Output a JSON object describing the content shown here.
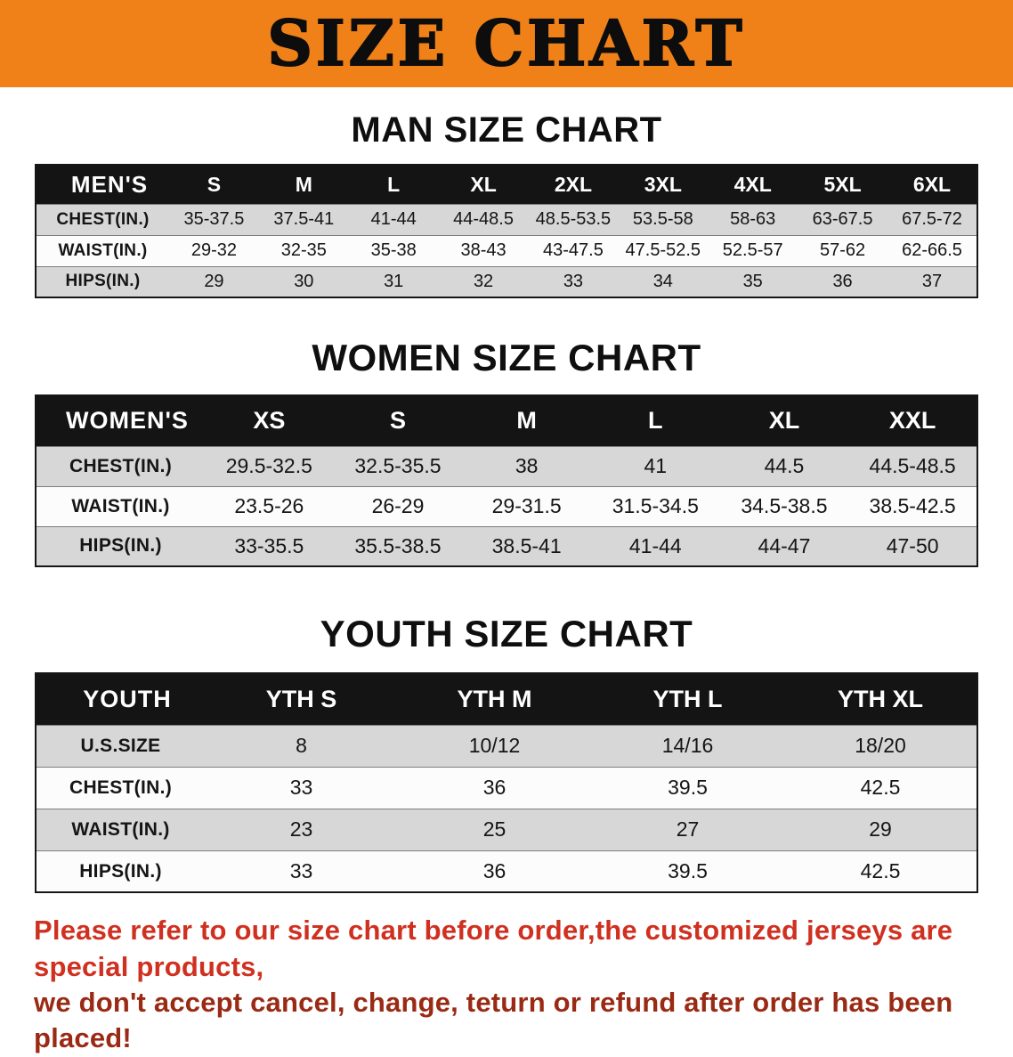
{
  "banner": {
    "title": "SIZE CHART",
    "bg_color": "#f08119"
  },
  "men": {
    "heading": "MAN SIZE CHART",
    "header": [
      "MEN'S",
      "S",
      "M",
      "L",
      "XL",
      "2XL",
      "3XL",
      "4XL",
      "5XL",
      "6XL"
    ],
    "rows": [
      {
        "label": "CHEST(IN.)",
        "values": [
          "35-37.5",
          "37.5-41",
          "41-44",
          "44-48.5",
          "48.5-53.5",
          "53.5-58",
          "58-63",
          "63-67.5",
          "67.5-72"
        ]
      },
      {
        "label": "WAIST(IN.)",
        "values": [
          "29-32",
          "32-35",
          "35-38",
          "38-43",
          "43-47.5",
          "47.5-52.5",
          "52.5-57",
          "57-62",
          "62-66.5"
        ]
      },
      {
        "label": "HIPS(IN.)",
        "values": [
          "29",
          "30",
          "31",
          "32",
          "33",
          "34",
          "35",
          "36",
          "37"
        ]
      }
    ]
  },
  "women": {
    "heading": "WOMEN SIZE CHART",
    "header": [
      "WOMEN'S",
      "XS",
      "S",
      "M",
      "L",
      "XL",
      "XXL"
    ],
    "rows": [
      {
        "label": "CHEST(IN.)",
        "values": [
          "29.5-32.5",
          "32.5-35.5",
          "38",
          "41",
          "44.5",
          "44.5-48.5"
        ]
      },
      {
        "label": "WAIST(IN.)",
        "values": [
          "23.5-26",
          "26-29",
          "29-31.5",
          "31.5-34.5",
          "34.5-38.5",
          "38.5-42.5"
        ]
      },
      {
        "label": "HIPS(IN.)",
        "values": [
          "33-35.5",
          "35.5-38.5",
          "38.5-41",
          "41-44",
          "44-47",
          "47-50"
        ]
      }
    ]
  },
  "youth": {
    "heading": "YOUTH SIZE CHART",
    "header": [
      "YOUTH",
      "YTH S",
      "YTH M",
      "YTH L",
      "YTH XL"
    ],
    "rows": [
      {
        "label": "U.S.SIZE",
        "values": [
          "8",
          "10/12",
          "14/16",
          "18/20"
        ]
      },
      {
        "label": "CHEST(IN.)",
        "values": [
          "33",
          "36",
          "39.5",
          "42.5"
        ]
      },
      {
        "label": "WAIST(IN.)",
        "values": [
          "23",
          "25",
          "27",
          "29"
        ]
      },
      {
        "label": "HIPS(IN.)",
        "values": [
          "33",
          "36",
          "39.5",
          "42.5"
        ]
      }
    ]
  },
  "disclaimer": {
    "line1": "Please refer to our size chart before order,the customized jerseys are special products,",
    "line2": "we don't accept cancel, change, teturn or refund after order has been placed!",
    "line1_color": "#d03020",
    "line2_color": "#9a2a14"
  }
}
